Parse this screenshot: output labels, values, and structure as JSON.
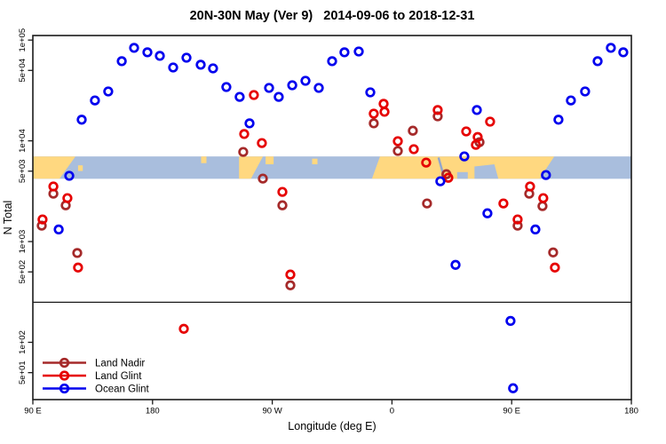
{
  "title": "20N-30N May (Ver 9)   2014-09-06 to 2018-12-31",
  "chart_data": {
    "type": "scatter",
    "title": "20N-30N May (Ver 9)   2014-09-06 to 2018-12-31",
    "xlabel": "Longitude (deg E)",
    "ylabel": "N Total",
    "y_scale": "log",
    "xlim_deg": [
      0,
      450
    ],
    "ylim": [
      27,
      111000
    ],
    "x_ticks": [
      {
        "t": 0,
        "label": "90 E"
      },
      {
        "t": 90,
        "label": "180"
      },
      {
        "t": 180,
        "label": "90 W"
      },
      {
        "t": 270,
        "label": "0"
      },
      {
        "t": 360,
        "label": "90 E"
      },
      {
        "t": 450,
        "label": "180"
      }
    ],
    "y_ticks": [
      {
        "n": 100000,
        "label": "1e+05"
      },
      {
        "n": 50000,
        "label": "5e+04"
      },
      {
        "n": 10000,
        "label": "1e+04"
      },
      {
        "n": 5000,
        "label": "5e+03"
      },
      {
        "n": 1000,
        "label": "1e+03"
      },
      {
        "n": 500,
        "label": "5e+02"
      },
      {
        "n": 100,
        "label": "1e+02"
      },
      {
        "n": 50,
        "label": "5e+01"
      }
    ],
    "threshold_line_n": 250,
    "legend_position": "bottom-left",
    "map_band": {
      "n_top": 7000,
      "n_bottom": 4200,
      "ocean_color": "#A9BEDD",
      "land_color": "#FFD880",
      "sea_detail_color": "#93A6CC",
      "land_polygons": [
        [
          [
            0,
            0
          ],
          [
            32,
            0
          ],
          [
            20,
            1
          ],
          [
            0,
            1
          ]
        ],
        [
          [
            126.5,
            0
          ],
          [
            130.5,
            0
          ],
          [
            130.5,
            0.3
          ],
          [
            126.5,
            0.3
          ]
        ],
        [
          [
            34,
            0.4
          ],
          [
            37.5,
            0.4
          ],
          [
            37.5,
            0.65
          ],
          [
            34,
            0.65
          ]
        ],
        [
          [
            155,
            0
          ],
          [
            173,
            0
          ],
          [
            164,
            1
          ],
          [
            155,
            1
          ]
        ],
        [
          [
            175,
            0
          ],
          [
            181,
            0
          ],
          [
            181,
            0.35
          ],
          [
            175,
            0.35
          ]
        ],
        [
          [
            210,
            0.1
          ],
          [
            214,
            0.1
          ],
          [
            214,
            0.35
          ],
          [
            210,
            0.35
          ]
        ],
        [
          [
            261,
            0
          ],
          [
            392,
            0
          ],
          [
            381,
            1
          ],
          [
            255,
            1
          ]
        ]
      ],
      "ocean_patches": [
        [
          [
            332,
            0.45
          ],
          [
            347,
            0.35
          ],
          [
            350,
            1
          ],
          [
            332,
            1
          ]
        ],
        [
          [
            319,
            0.7
          ],
          [
            327,
            0.7
          ],
          [
            327,
            1
          ],
          [
            319,
            1
          ]
        ]
      ],
      "red_sea": {
        "t1": 305,
        "f1": 0.05,
        "t2": 309.5,
        "f2": 1
      }
    },
    "series": [
      {
        "name": "Land Nadir",
        "color": "#A52A2A",
        "points": [
          [
            158.2,
            7760
          ],
          [
            172.9,
            4220
          ],
          [
            187.6,
            2290
          ],
          [
            193.6,
            368
          ],
          [
            256.3,
            14900
          ],
          [
            285.7,
            12600
          ],
          [
            274.4,
            7930
          ],
          [
            304.4,
            17500
          ],
          [
            310.9,
            4660
          ],
          [
            296.4,
            2390
          ],
          [
            335.8,
            9700
          ],
          [
            15.4,
            2990
          ],
          [
            24.7,
            2290
          ],
          [
            6.7,
            1440
          ],
          [
            33.4,
            770
          ],
          [
            373.2,
            2990
          ],
          [
            383.2,
            2250
          ],
          [
            364.5,
            1440
          ],
          [
            391.2,
            780
          ]
        ]
      },
      {
        "name": "Land Glint",
        "color": "#E60000",
        "points": [
          [
            166.2,
            28500
          ],
          [
            158.9,
            11700
          ],
          [
            172.2,
            9510
          ],
          [
            187.6,
            3110
          ],
          [
            193.6,
            470
          ],
          [
            113.5,
            136
          ],
          [
            263.7,
            23300
          ],
          [
            264.4,
            19400
          ],
          [
            256.3,
            18600
          ],
          [
            274.4,
            9910
          ],
          [
            286.4,
            8260
          ],
          [
            295.7,
            6080
          ],
          [
            304.4,
            20200
          ],
          [
            312.4,
            4300
          ],
          [
            343.8,
            15500
          ],
          [
            325.8,
            12400
          ],
          [
            334.4,
            10900
          ],
          [
            333.1,
            9120
          ],
          [
            353.8,
            2390
          ],
          [
            15.4,
            3520
          ],
          [
            26,
            2700
          ],
          [
            7.3,
            1660
          ],
          [
            34,
            552
          ],
          [
            373.8,
            3520
          ],
          [
            383.8,
            2700
          ],
          [
            364.5,
            1660
          ],
          [
            392.5,
            552
          ]
        ]
      },
      {
        "name": "Ocean Glint",
        "color": "#0000EE",
        "points": [
          [
            36.7,
            16200
          ],
          [
            46.7,
            25200
          ],
          [
            56.7,
            30900
          ],
          [
            66.8,
            61700
          ],
          [
            76.1,
            83700
          ],
          [
            86.1,
            75600
          ],
          [
            95.5,
            69700
          ],
          [
            105.5,
            53500
          ],
          [
            115.5,
            66800
          ],
          [
            126.2,
            56900
          ],
          [
            135.5,
            52400
          ],
          [
            145.5,
            34200
          ],
          [
            155.5,
            27300
          ],
          [
            162.9,
            14900
          ],
          [
            177.6,
            33500
          ],
          [
            184.9,
            27300
          ],
          [
            195,
            35600
          ],
          [
            205,
            39400
          ],
          [
            215,
            33500
          ],
          [
            225,
            61700
          ],
          [
            234.3,
            75600
          ],
          [
            245,
            77100
          ],
          [
            253.7,
            30300
          ],
          [
            333.8,
            20200
          ],
          [
            324.4,
            7010
          ],
          [
            306.4,
            3970
          ],
          [
            341.8,
            1910
          ],
          [
            317.8,
            587
          ],
          [
            19.4,
            1320
          ],
          [
            27.4,
            4490
          ],
          [
            377.8,
            1320
          ],
          [
            385.8,
            4580
          ],
          [
            395.2,
            16200
          ],
          [
            404.5,
            25200
          ],
          [
            415.2,
            30900
          ],
          [
            424.6,
            61700
          ],
          [
            434.6,
            83700
          ],
          [
            443.9,
            75600
          ],
          [
            359.1,
            163
          ],
          [
            361.1,
            35
          ]
        ]
      }
    ]
  }
}
